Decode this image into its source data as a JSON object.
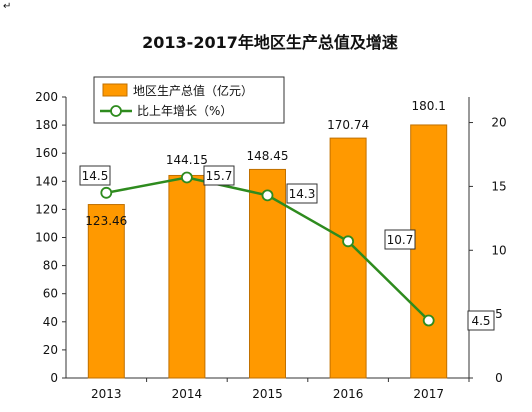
{
  "corner_mark": "↵",
  "chart_data": {
    "type": "bar",
    "title": "2013-2017年地区生产总值及增速",
    "categories": [
      "2013",
      "2014",
      "2015",
      "2016",
      "2017"
    ],
    "series": [
      {
        "name": "地区生产总值（亿元）",
        "type": "bar",
        "axis": "left",
        "values": [
          123.46,
          144.15,
          148.45,
          170.74,
          180.1
        ],
        "labels": [
          "123.46",
          "144.15",
          "148.45",
          "170.74",
          "180.1"
        ],
        "color": "#FF9900",
        "border_color": "#C07000"
      },
      {
        "name": "比上年增长（%）",
        "type": "line",
        "axis": "right",
        "values": [
          14.5,
          15.7,
          14.3,
          10.7,
          4.5
        ],
        "labels": [
          "14.5",
          "15.7",
          "14.3",
          "10.7",
          "4.5"
        ],
        "color": "#2E8B1E",
        "marker_fill": "#ffffff"
      }
    ],
    "y_left": {
      "ylim": [
        0,
        200
      ],
      "ticks": [
        0,
        20,
        40,
        60,
        80,
        100,
        120,
        140,
        160,
        180,
        200
      ]
    },
    "y_right": {
      "ylim": [
        0,
        22
      ],
      "ticks": [
        0,
        5,
        10,
        15,
        20
      ]
    },
    "legend_position": "top-left",
    "grid": false
  }
}
